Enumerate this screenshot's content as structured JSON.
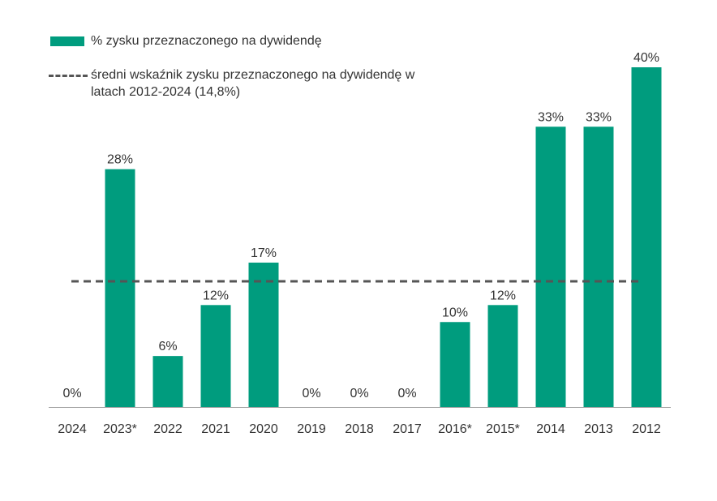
{
  "colors": {
    "bar": "#009c7e",
    "average_line": "#555555",
    "axis": "#999999",
    "text": "#333333"
  },
  "chart_data": {
    "type": "bar",
    "categories": [
      "2024",
      "2023*",
      "2022",
      "2021",
      "2020",
      "2019",
      "2018",
      "2017",
      "2016*",
      "2015*",
      "2014",
      "2013",
      "2012"
    ],
    "series": [
      {
        "name": "% zysku przeznaczonego na dywidendę",
        "values": [
          0,
          28,
          6,
          12,
          17,
          0,
          0,
          0,
          10,
          12,
          33,
          33,
          40
        ],
        "labels": [
          "0%",
          "28%",
          "6%",
          "12%",
          "17%",
          "0%",
          "0%",
          "0%",
          "10%",
          "12%",
          "33%",
          "33%",
          "40%"
        ]
      }
    ],
    "reference_line": {
      "name": "średni wskaźnik zysku przeznaczonego na dywidendę w latach 2012-2024 (14,8%)",
      "value": 14.8,
      "style": "dashed"
    },
    "ylim": [
      0,
      40
    ],
    "grid": false,
    "legend_position": "top-left",
    "title": "",
    "xlabel": "",
    "ylabel": ""
  }
}
